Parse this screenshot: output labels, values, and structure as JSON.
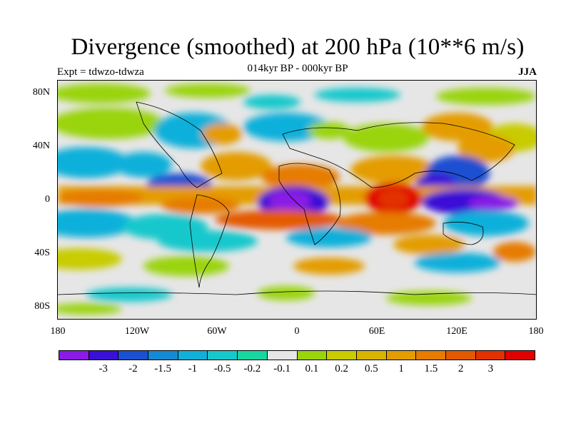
{
  "title": "Divergence (smoothed) at 200 hPa (10**6 m/s)",
  "subtitle": "014kyr BP - 000kyr BP",
  "experiment": "Expt = tdwzo-tdwza",
  "season": "JJA",
  "map": {
    "lat_labels": [
      "80N",
      "40N",
      "0",
      "40S",
      "80S"
    ],
    "lon_labels": [
      "180",
      "120W",
      "60W",
      "0",
      "60E",
      "120E",
      "180"
    ]
  },
  "colorbar": {
    "colors": [
      "#8a1ae6",
      "#3a10d6",
      "#1a50d2",
      "#148ad6",
      "#10b0da",
      "#16c8cc",
      "#18d6a0",
      "#e6e6e6",
      "#9ad40a",
      "#c8cc00",
      "#d8b400",
      "#e49c00",
      "#e67c00",
      "#e45a00",
      "#e23200",
      "#e00000"
    ],
    "labels": [
      "-3",
      "-2",
      "-1.5",
      "-1",
      "-0.5",
      "-0.2",
      "-0.1",
      "0.1",
      "0.2",
      "0.5",
      "1",
      "1.5",
      "2",
      "3"
    ]
  }
}
